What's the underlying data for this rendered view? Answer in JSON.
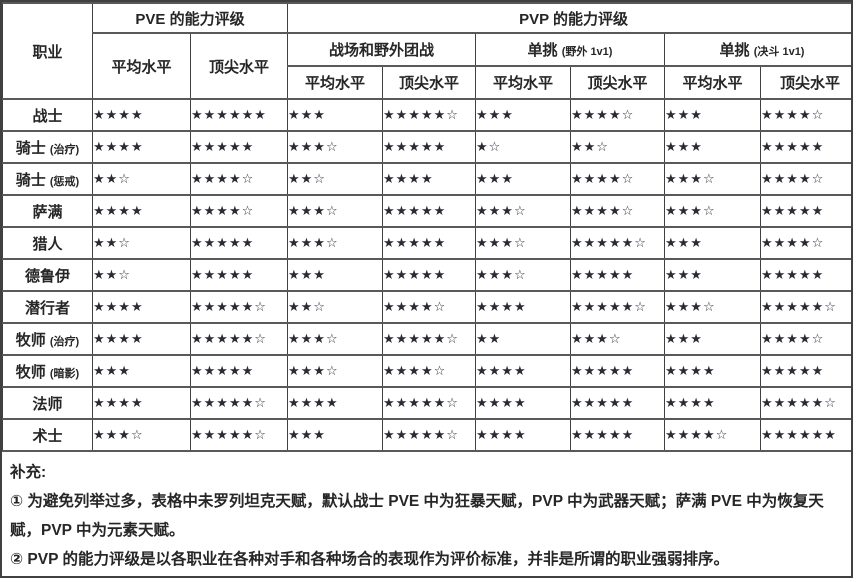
{
  "table": {
    "class_header": "职业",
    "pve_header": "PVE 的能力评级",
    "pvp_header": "PVP 的能力评级",
    "avg_label": "平均水平",
    "top_label": "顶尖水平",
    "groups": [
      {
        "label": "战场和野外团战",
        "note": ""
      },
      {
        "label": "单挑",
        "note": "(野外 1v1)"
      },
      {
        "label": "单挑",
        "note": "(决斗 1v1)"
      }
    ],
    "columns": [
      "职业",
      "PVE 平均水平",
      "PVE 顶尖水平",
      "战场和野外团战 平均水平",
      "战场和野外团战 顶尖水平",
      "单挑(野外 1v1) 平均水平",
      "单挑(野外 1v1) 顶尖水平",
      "单挑(决斗 1v1) 平均水平",
      "单挑(决斗 1v1) 顶尖水平"
    ],
    "rows": [
      {
        "name": "战士",
        "note": "",
        "stars": [
          "★★★★",
          "★★★★★★",
          "★★★",
          "★★★★★☆",
          "★★★",
          "★★★★☆",
          "★★★",
          "★★★★☆"
        ]
      },
      {
        "name": "骑士",
        "note": "(治疗)",
        "stars": [
          "★★★★",
          "★★★★★",
          "★★★☆",
          "★★★★★",
          "★☆",
          "★★☆",
          "★★★",
          "★★★★★"
        ]
      },
      {
        "name": "骑士",
        "note": "(惩戒)",
        "stars": [
          "★★☆",
          "★★★★☆",
          "★★☆",
          "★★★★",
          "★★★",
          "★★★★☆",
          "★★★☆",
          "★★★★☆"
        ]
      },
      {
        "name": "萨满",
        "note": "",
        "stars": [
          "★★★★",
          "★★★★☆",
          "★★★☆",
          "★★★★★",
          "★★★☆",
          "★★★★☆",
          "★★★☆",
          "★★★★★"
        ]
      },
      {
        "name": "猎人",
        "note": "",
        "stars": [
          "★★☆",
          "★★★★★",
          "★★★☆",
          "★★★★★",
          "★★★☆",
          "★★★★★☆",
          "★★★",
          "★★★★☆"
        ]
      },
      {
        "name": "德鲁伊",
        "note": "",
        "stars": [
          "★★☆",
          "★★★★★",
          "★★★",
          "★★★★★",
          "★★★☆",
          "★★★★★",
          "★★★",
          "★★★★★"
        ]
      },
      {
        "name": "潜行者",
        "note": "",
        "stars": [
          "★★★★",
          "★★★★★☆",
          "★★☆",
          "★★★★☆",
          "★★★★",
          "★★★★★☆",
          "★★★☆",
          "★★★★★☆"
        ]
      },
      {
        "name": "牧师",
        "note": "(治疗)",
        "stars": [
          "★★★★",
          "★★★★★☆",
          "★★★☆",
          "★★★★★☆",
          "★★",
          "★★★☆",
          "★★★",
          "★★★★☆"
        ]
      },
      {
        "name": "牧师",
        "note": "(暗影)",
        "stars": [
          "★★★",
          "★★★★★",
          "★★★☆",
          "★★★★☆",
          "★★★★",
          "★★★★★",
          "★★★★",
          "★★★★★"
        ]
      },
      {
        "name": "法师",
        "note": "",
        "stars": [
          "★★★★",
          "★★★★★☆",
          "★★★★",
          "★★★★★☆",
          "★★★★",
          "★★★★★",
          "★★★★",
          "★★★★★☆"
        ]
      },
      {
        "name": "术士",
        "note": "",
        "stars": [
          "★★★☆",
          "★★★★★☆",
          "★★★",
          "★★★★★☆",
          "★★★★",
          "★★★★★",
          "★★★★☆",
          "★★★★★★"
        ]
      }
    ]
  },
  "footer": {
    "title": "补充:",
    "note1": "① 为避免列举过多，表格中未罗列坦克天赋，默认战士 PVE 中为狂暴天赋，PVP 中为武器天赋；萨满 PVE 中为恢复天赋，PVP 中为元素天赋。",
    "note2": "② PVP 的能力评级是以各职业在各种对手和各种场合的表现作为评价标准，并非是所谓的职业强弱排序。"
  }
}
